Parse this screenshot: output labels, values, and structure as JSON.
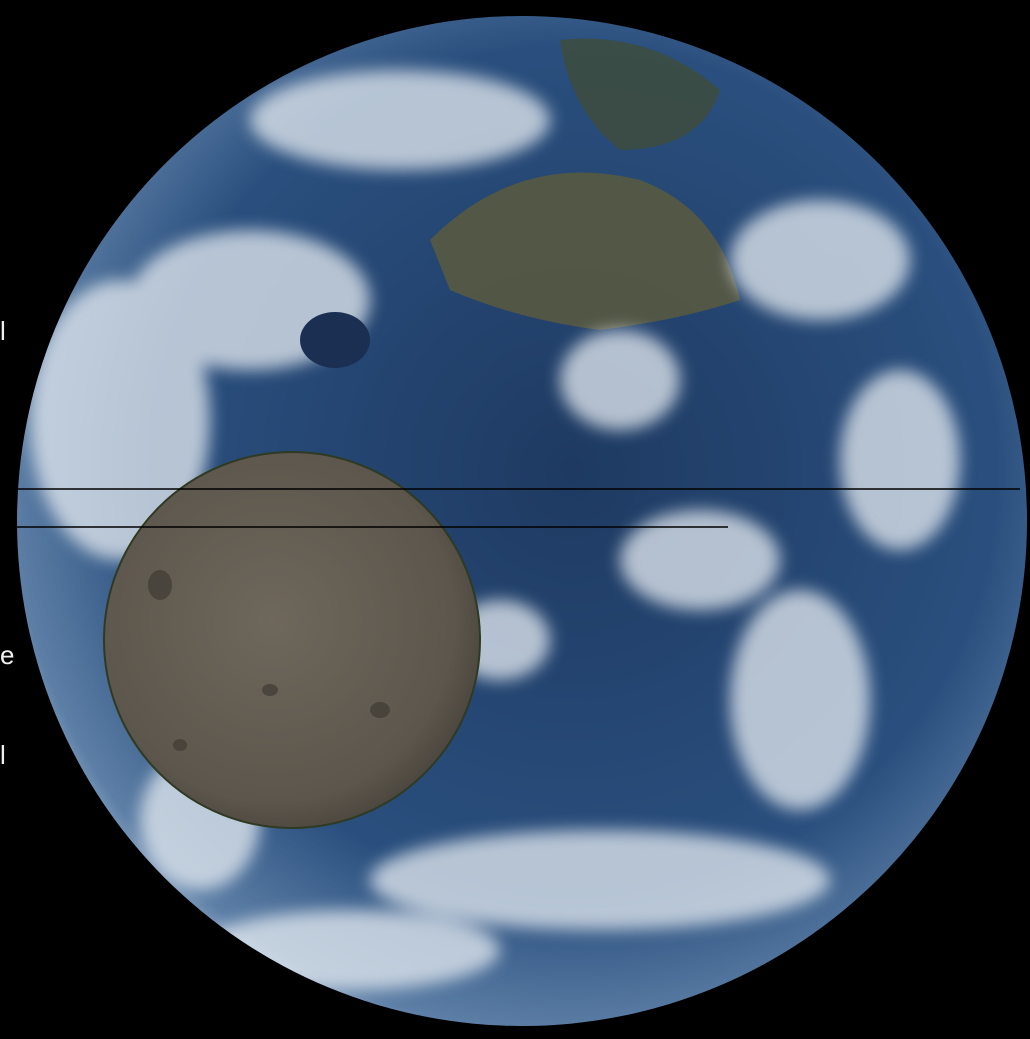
{
  "image": {
    "edge_text_fragments": [
      "l",
      "e",
      "l"
    ]
  }
}
